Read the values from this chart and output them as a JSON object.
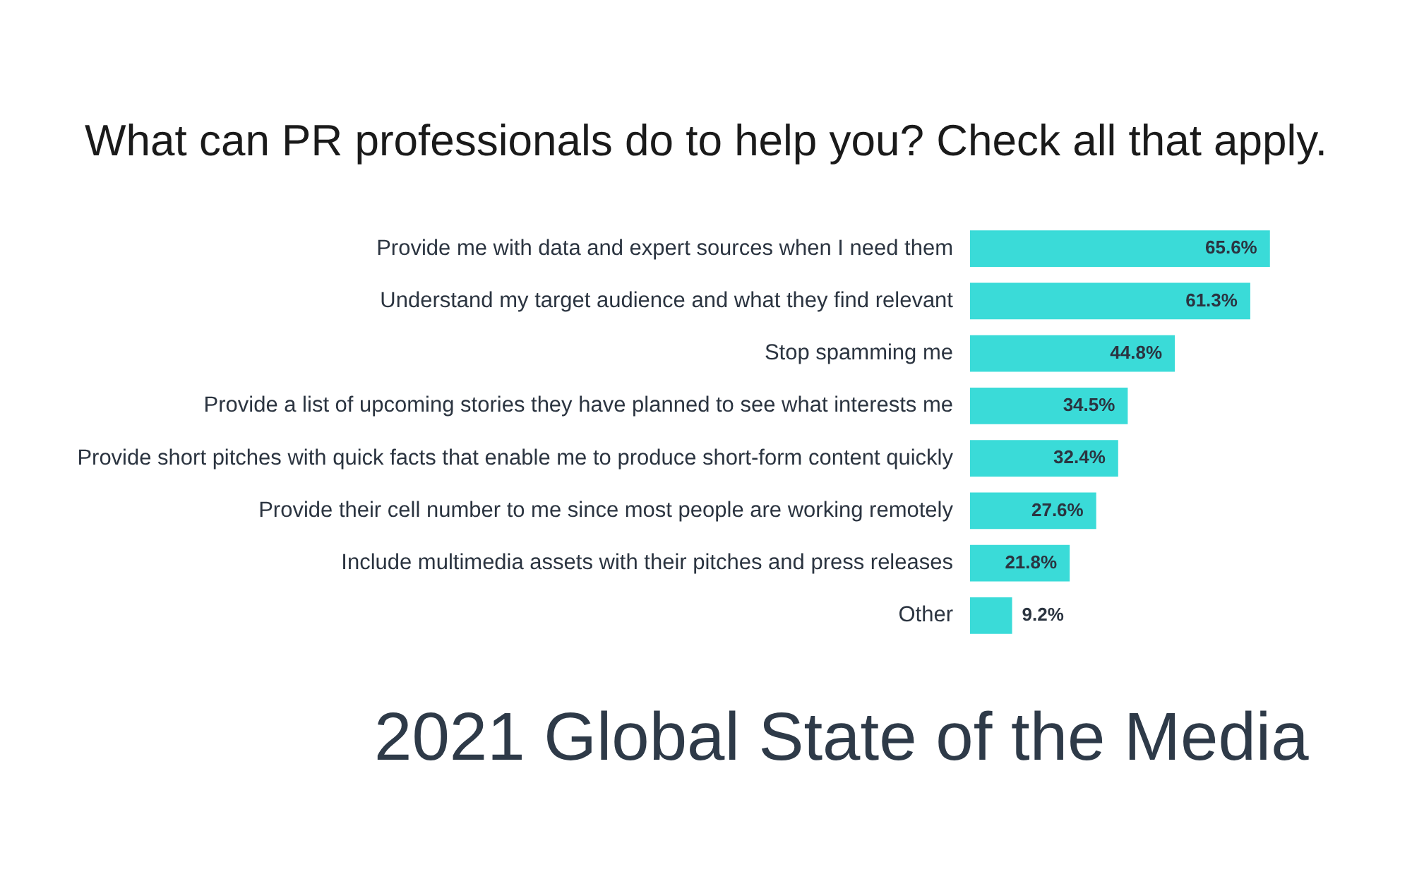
{
  "chart_data": {
    "type": "bar",
    "orientation": "horizontal",
    "title": "What can PR professionals do to help you? Check all that apply.",
    "categories": [
      "Provide me with data and expert sources when I need them",
      "Understand my target audience and what they find relevant",
      "Stop spamming me",
      "Provide a list of upcoming stories they have planned to see what interests me",
      "Provide short pitches with quick facts that enable me to produce short-form content quickly",
      "Provide their cell number to me since most people are working remotely",
      "Include multimedia assets with their pitches and press releases",
      "Other"
    ],
    "values": [
      65.6,
      61.3,
      44.8,
      34.5,
      32.4,
      27.6,
      21.8,
      9.2
    ],
    "value_labels": [
      "65.6%",
      "61.3%",
      "44.8%",
      "34.5%",
      "32.4%",
      "27.6%",
      "21.8%",
      "9.2%"
    ],
    "color": "#3adbd8",
    "tick_labels": "y",
    "annotations": [
      "2021 Global State of the Media"
    ]
  }
}
